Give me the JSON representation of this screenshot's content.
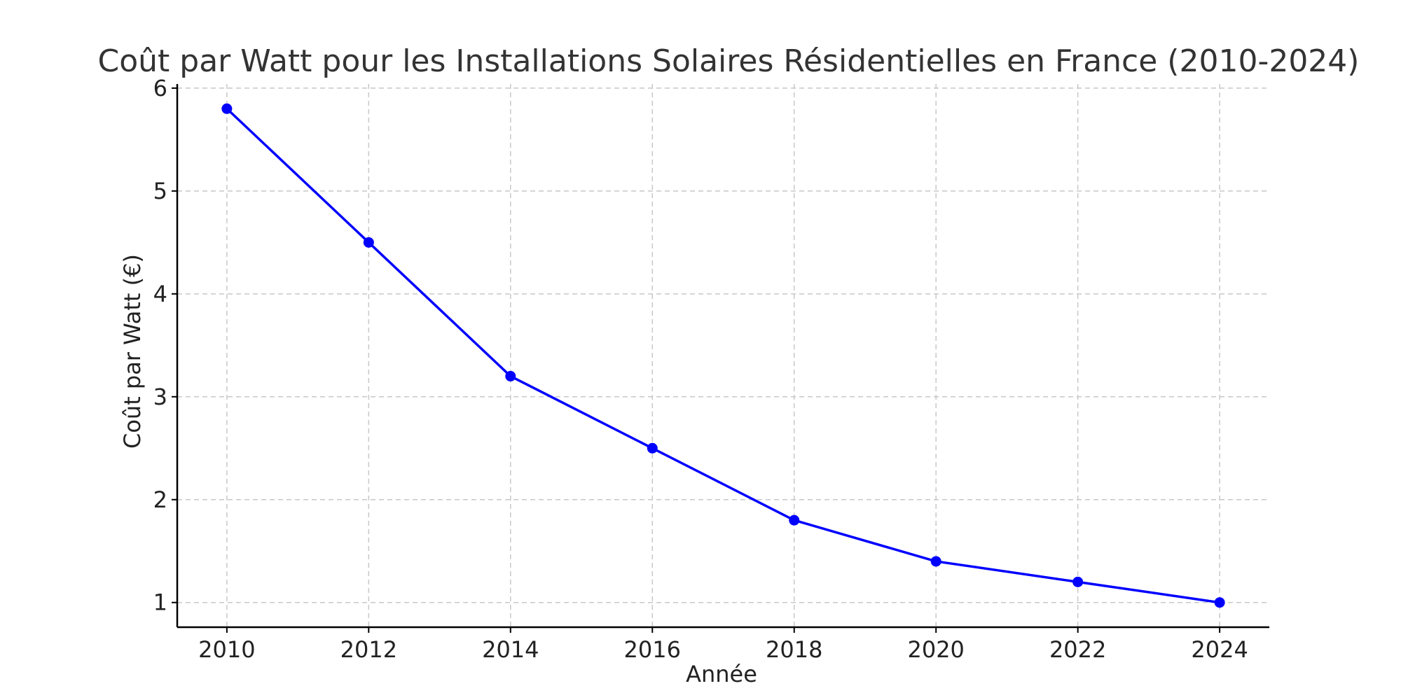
{
  "chart_data": {
    "type": "line",
    "title": "Coût par Watt pour les Installations Solaires Résidentielles en France (2010-2024)",
    "xlabel": "Année",
    "ylabel": "Coût par Watt (€)",
    "x": [
      2010,
      2012,
      2014,
      2016,
      2018,
      2020,
      2022,
      2024
    ],
    "series": [
      {
        "values": [
          5.8,
          4.5,
          3.2,
          2.5,
          1.8,
          1.4,
          1.2,
          1.0
        ],
        "color": "#0000ff",
        "marker": "circle"
      }
    ],
    "xticks": [
      "2010",
      "2012",
      "2014",
      "2016",
      "2018",
      "2020",
      "2022",
      "2024"
    ],
    "yticks": [
      "1",
      "2",
      "3",
      "4",
      "5",
      "6"
    ],
    "xlim": [
      2009.3,
      2024.7
    ],
    "ylim": [
      0.76,
      6.04
    ],
    "grid": true,
    "legend": "none"
  }
}
